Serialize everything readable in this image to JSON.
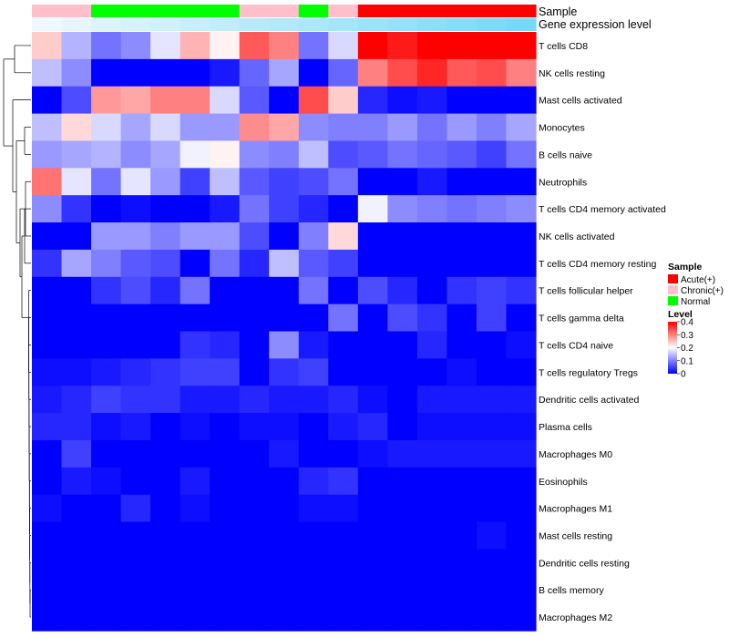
{
  "chart_data": {
    "type": "heatmap",
    "title": "",
    "annotation_labels": [
      "Sample",
      "Gene expression level"
    ],
    "sample_groups": [
      "Chronic",
      "Chronic",
      "Normal",
      "Normal",
      "Normal",
      "Normal",
      "Normal",
      "Chronic",
      "Chronic",
      "Normal",
      "Chronic",
      "Acute",
      "Acute",
      "Acute",
      "Acute",
      "Acute",
      "Acute"
    ],
    "gene_expression_level": [
      0.02,
      0.08,
      0.13,
      0.18,
      0.22,
      0.27,
      0.32,
      0.37,
      0.41,
      0.46,
      0.51,
      0.56,
      0.61,
      0.66,
      0.71,
      0.76,
      0.81
    ],
    "rows": [
      "T cells CD8",
      "NK cells resting",
      "Mast cells activated",
      "Monocytes",
      "B cells naive",
      "Neutrophils",
      "T cells CD4 memory activated",
      "NK cells activated",
      "T cells CD4 memory resting",
      "T cells follicular helper",
      "T cells gamma delta",
      "T cells CD4 naive",
      "T cells regulatory  Tregs",
      "Dendritic cells activated",
      "Plasma cells",
      "Macrophages M0",
      "Eosinophils",
      "Macrophages M1",
      "Mast cells resting",
      "Dendritic cells resting",
      "B cells memory",
      "Macrophages M2"
    ],
    "values": [
      [
        0.24,
        0.14,
        0.09,
        0.11,
        0.18,
        0.26,
        0.21,
        0.33,
        0.3,
        0.09,
        0.17,
        0.4,
        0.38,
        0.4,
        0.4,
        0.4,
        0.4
      ],
      [
        0.15,
        0.11,
        0.0,
        0.0,
        0.0,
        0.0,
        0.02,
        0.08,
        0.13,
        0.0,
        0.08,
        0.3,
        0.34,
        0.37,
        0.33,
        0.34,
        0.3
      ],
      [
        0.0,
        0.06,
        0.28,
        0.27,
        0.3,
        0.3,
        0.17,
        0.07,
        0.0,
        0.34,
        0.24,
        0.03,
        0.01,
        0.02,
        0.0,
        0.0,
        0.0
      ],
      [
        0.15,
        0.23,
        0.17,
        0.13,
        0.17,
        0.12,
        0.12,
        0.29,
        0.27,
        0.11,
        0.1,
        0.1,
        0.12,
        0.09,
        0.12,
        0.1,
        0.13
      ],
      [
        0.12,
        0.13,
        0.14,
        0.11,
        0.13,
        0.19,
        0.21,
        0.11,
        0.1,
        0.15,
        0.06,
        0.07,
        0.09,
        0.08,
        0.07,
        0.05,
        0.09
      ],
      [
        0.31,
        0.18,
        0.09,
        0.18,
        0.12,
        0.05,
        0.15,
        0.07,
        0.05,
        0.06,
        0.09,
        0.0,
        0.0,
        0.02,
        0.0,
        0.0,
        0.0
      ],
      [
        0.11,
        0.04,
        0.0,
        0.01,
        0.0,
        0.0,
        0.02,
        0.09,
        0.05,
        0.03,
        0.0,
        0.19,
        0.11,
        0.1,
        0.09,
        0.1,
        0.11
      ],
      [
        0.0,
        0.0,
        0.12,
        0.12,
        0.1,
        0.12,
        0.12,
        0.06,
        0.0,
        0.1,
        0.23,
        0.0,
        0.0,
        0.0,
        0.0,
        0.0,
        0.0
      ],
      [
        0.04,
        0.13,
        0.1,
        0.07,
        0.06,
        0.0,
        0.09,
        0.03,
        0.15,
        0.07,
        0.05,
        0.0,
        0.0,
        0.0,
        0.0,
        0.0,
        0.0
      ],
      [
        0.0,
        0.0,
        0.04,
        0.06,
        0.03,
        0.09,
        0.0,
        0.0,
        0.0,
        0.09,
        0.0,
        0.06,
        0.03,
        0.0,
        0.04,
        0.05,
        0.04
      ],
      [
        0.0,
        0.0,
        0.0,
        0.0,
        0.0,
        0.0,
        0.0,
        0.0,
        0.0,
        0.0,
        0.09,
        0.0,
        0.06,
        0.04,
        0.0,
        0.05,
        0.0
      ],
      [
        0.0,
        0.0,
        0.0,
        0.0,
        0.0,
        0.04,
        0.03,
        0.0,
        0.11,
        0.02,
        0.0,
        0.0,
        0.0,
        0.03,
        0.0,
        0.0,
        0.01
      ],
      [
        0.01,
        0.01,
        0.02,
        0.03,
        0.04,
        0.05,
        0.05,
        0.0,
        0.04,
        0.05,
        0.0,
        0.0,
        0.0,
        0.0,
        0.01,
        0.0,
        0.0
      ],
      [
        0.02,
        0.03,
        0.05,
        0.04,
        0.04,
        0.02,
        0.02,
        0.03,
        0.02,
        0.02,
        0.03,
        0.01,
        0.0,
        0.02,
        0.02,
        0.02,
        0.02
      ],
      [
        0.03,
        0.03,
        0.01,
        0.02,
        0.0,
        0.01,
        0.0,
        0.01,
        0.01,
        0.0,
        0.02,
        0.03,
        0.0,
        0.01,
        0.01,
        0.01,
        0.01
      ],
      [
        0.0,
        0.05,
        0.0,
        0.0,
        0.0,
        0.0,
        0.0,
        0.0,
        0.02,
        0.0,
        0.0,
        0.01,
        0.02,
        0.02,
        0.02,
        0.02,
        0.02
      ],
      [
        0.0,
        0.02,
        0.01,
        0.0,
        0.0,
        0.02,
        0.0,
        0.0,
        0.0,
        0.03,
        0.04,
        0.0,
        0.0,
        0.0,
        0.0,
        0.0,
        0.0
      ],
      [
        0.01,
        0.0,
        0.0,
        0.03,
        0.0,
        0.01,
        0.0,
        0.0,
        0.0,
        0.01,
        0.01,
        0.0,
        0.0,
        0.0,
        0.0,
        0.0,
        0.0
      ],
      [
        0.0,
        0.0,
        0.0,
        0.0,
        0.0,
        0.0,
        0.0,
        0.0,
        0.0,
        0.0,
        0.0,
        0.0,
        0.0,
        0.0,
        0.0,
        0.01,
        0.0
      ],
      [
        0.0,
        0.0,
        0.0,
        0.0,
        0.0,
        0.0,
        0.0,
        0.0,
        0.0,
        0.0,
        0.0,
        0.0,
        0.0,
        0.0,
        0.0,
        0.0,
        0.0
      ],
      [
        0.0,
        0.0,
        0.0,
        0.0,
        0.0,
        0.0,
        0.0,
        0.0,
        0.0,
        0.0,
        0.0,
        0.0,
        0.0,
        0.0,
        0.0,
        0.0,
        0.0
      ],
      [
        0.0,
        0.0,
        0.0,
        0.0,
        0.0,
        0.0,
        0.0,
        0.0,
        0.0,
        0.0,
        0.0,
        0.0,
        0.0,
        0.0,
        0.0,
        0.0,
        0.0
      ]
    ],
    "value_range": [
      0,
      0.4
    ],
    "legend": {
      "sample_title": "Sample",
      "sample_entries": [
        {
          "name": "Acute(+)",
          "color": "#ff0000"
        },
        {
          "name": "Chronic(+)",
          "color": "#ffc0cb"
        },
        {
          "name": "Normal",
          "color": "#00ff00"
        }
      ],
      "level_title": "Level",
      "level_ticks": [
        "0.4",
        "0.3",
        "0.2",
        "0.1",
        "0"
      ],
      "level_tick_values": [
        0.4,
        0.3,
        0.2,
        0.1,
        0.0
      ],
      "placement": "right"
    },
    "color_scale": {
      "low": "#0000ff",
      "mid": "#ffffff",
      "high": "#ff0000",
      "mid_value": 0.2
    },
    "annotation_colors": {
      "Acute": "#ff0000",
      "Chronic": "#ffc0cb",
      "Normal": "#00ff00",
      "expression_low": "#f2f9fc",
      "expression_high": "#59d1f7"
    },
    "dendrogram": "row clustering tree on left"
  }
}
